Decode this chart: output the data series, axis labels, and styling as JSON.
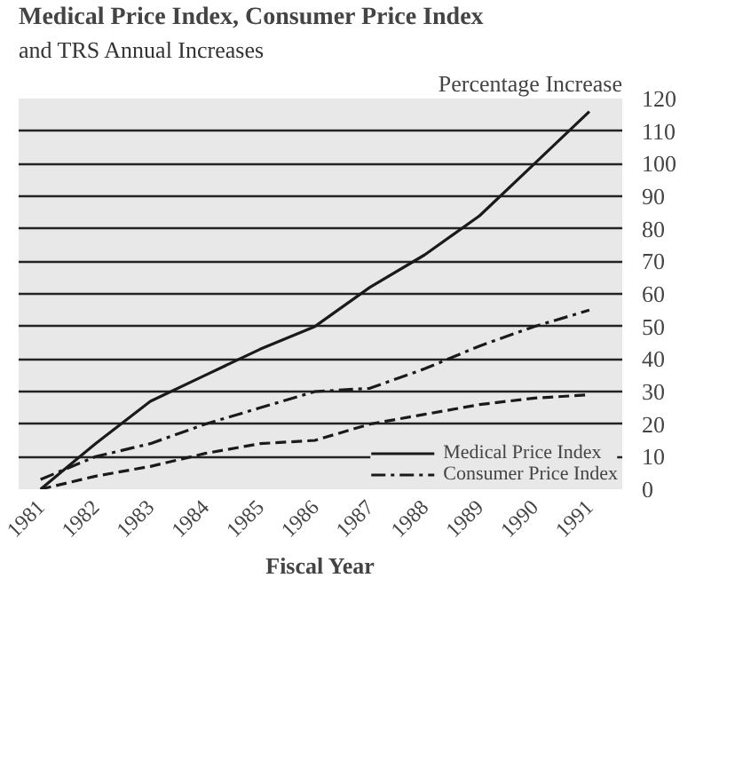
{
  "chart_data": {
    "type": "line",
    "title": "Medical Price Index, Consumer Price Index",
    "subtitle": "and TRS Annual Increases",
    "xlabel": "Fiscal Year",
    "ylabel": "Percentage Increase",
    "categories": [
      "1981",
      "1982",
      "1983",
      "1984",
      "1985",
      "1986",
      "1987",
      "1988",
      "1989",
      "1990",
      "1991"
    ],
    "series": [
      {
        "name": "Medical Price Index",
        "color": "#1a1a1a",
        "line_style": "solid",
        "values": [
          0,
          14,
          27,
          35,
          43,
          50,
          62,
          72,
          84,
          100,
          116
        ]
      },
      {
        "name": "Consumer Price Index",
        "color": "#1a1a1a",
        "line_style": "dashdot",
        "values": [
          3,
          10,
          14,
          20,
          25,
          30,
          31,
          37,
          44,
          50,
          55
        ]
      },
      {
        "color": "#1a1a1a",
        "line_style": "dashed",
        "values": [
          0,
          4,
          7,
          11,
          14,
          15,
          20,
          23,
          26,
          28,
          29
        ]
      }
    ],
    "ylim": [
      0,
      120
    ],
    "yticks": [
      0,
      10,
      20,
      30,
      40,
      50,
      60,
      70,
      80,
      90,
      100,
      110,
      120
    ],
    "grid": "y",
    "legend": "bottom right",
    "marker": "none"
  }
}
